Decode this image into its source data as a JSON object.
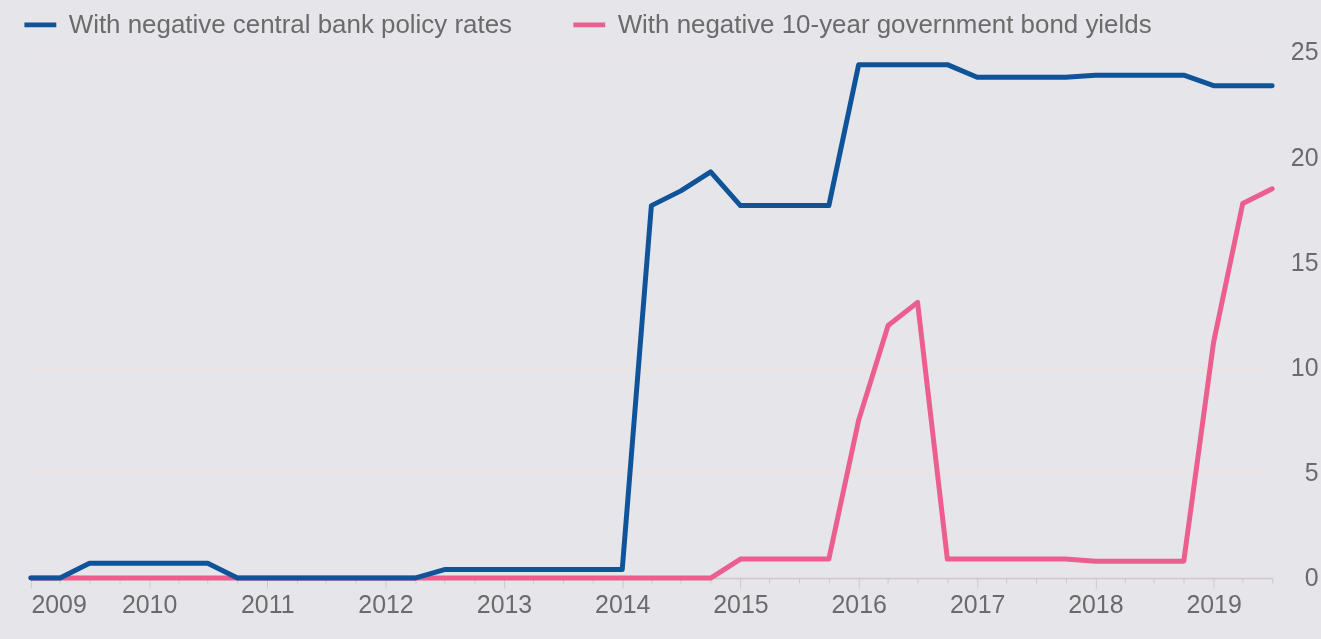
{
  "chart_data": {
    "type": "line",
    "x": [
      "2009-01",
      "2009-04",
      "2009-07",
      "2009-10",
      "2010-01",
      "2010-04",
      "2010-07",
      "2010-10",
      "2011-01",
      "2011-04",
      "2011-07",
      "2011-10",
      "2012-01",
      "2012-04",
      "2012-07",
      "2012-10",
      "2013-01",
      "2013-04",
      "2013-07",
      "2013-10",
      "2014-01",
      "2014-04",
      "2014-07",
      "2014-10",
      "2015-01",
      "2015-04",
      "2015-07",
      "2015-10",
      "2016-01",
      "2016-04",
      "2016-07",
      "2016-10",
      "2017-01",
      "2017-04",
      "2017-07",
      "2017-10",
      "2018-01",
      "2018-04",
      "2018-07",
      "2018-10",
      "2019-01",
      "2019-04",
      "2019-07"
    ],
    "series": [
      {
        "name": "With negative central bank policy rates",
        "color": "#0f5499",
        "axis": "y2",
        "values": [
          0,
          0,
          0.7,
          0.7,
          0.7,
          0.7,
          0.7,
          0,
          0,
          0,
          0,
          0,
          0,
          0,
          0.4,
          0.4,
          0.4,
          0.4,
          0.4,
          0.4,
          0.4,
          17.7,
          18.4,
          19.3,
          17.7,
          17.7,
          17.7,
          17.7,
          24.4,
          24.4,
          24.4,
          24.4,
          23.8,
          23.8,
          23.8,
          23.8,
          23.9,
          23.9,
          23.9,
          23.9,
          23.4,
          23.4,
          23.4
        ]
      },
      {
        "name": "With negative 10-year government bond yields",
        "color": "#eb5e8d",
        "axis": "y2",
        "values": [
          0,
          0,
          0,
          0,
          0,
          0,
          0,
          0,
          0,
          0,
          0,
          0,
          0,
          0,
          0,
          0,
          0,
          0,
          0,
          0,
          0,
          0,
          0,
          0,
          0.9,
          0.9,
          0.9,
          0.9,
          7.5,
          12.0,
          13.1,
          0.9,
          0.9,
          0.9,
          0.9,
          0.9,
          0.8,
          0.8,
          0.8,
          0.8,
          11.2,
          17.8,
          18.5
        ]
      }
    ],
    "xlim": [
      "2009-01",
      "2019-07"
    ],
    "xticks": [
      "2009",
      {
        "value": "2009-04",
        "label": null
      },
      {
        "value": "2009-07",
        "label": null
      },
      {
        "value": "2009-10",
        "label": null
      },
      "2010",
      {
        "value": "2010-04",
        "label": null
      },
      {
        "value": "2010-07",
        "label": null
      },
      {
        "value": "2010-10",
        "label": null
      },
      "2011",
      {
        "value": "2011-04",
        "label": null
      },
      {
        "value": "2011-07",
        "label": null
      },
      {
        "value": "2011-10",
        "label": null
      },
      "2012",
      {
        "value": "2012-04",
        "label": null
      },
      {
        "value": "2012-07",
        "label": null
      },
      {
        "value": "2012-10",
        "label": null
      },
      "2013",
      {
        "value": "2013-04",
        "label": null
      },
      {
        "value": "2013-07",
        "label": null
      },
      {
        "value": "2013-10",
        "label": null
      },
      "2014",
      {
        "value": "2014-04",
        "label": null
      },
      {
        "value": "2014-07",
        "label": null
      },
      {
        "value": "2014-10",
        "label": null
      },
      "2015",
      {
        "value": "2015-04",
        "label": null
      },
      {
        "value": "2015-07",
        "label": null
      },
      {
        "value": "2015-10",
        "label": null
      },
      "2016",
      {
        "value": "2016-04",
        "label": null
      },
      {
        "value": "2016-07",
        "label": null
      },
      {
        "value": "2016-10",
        "label": null
      },
      "2017",
      {
        "value": "2017-04",
        "label": null
      },
      {
        "value": "2017-07",
        "label": null
      },
      {
        "value": "2017-10",
        "label": null
      },
      "2018",
      {
        "value": "2018-04",
        "label": null
      },
      {
        "value": "2018-07",
        "label": null
      },
      {
        "value": "2018-10",
        "label": null
      },
      "2019",
      {
        "value": "2019-04",
        "label": null
      },
      {
        "value": "2019-07",
        "label": null
      }
    ],
    "y2lim": [
      0,
      25
    ],
    "y2ticks": [
      0,
      5,
      10,
      15,
      20,
      25
    ],
    "grid": "y",
    "legend": "top left",
    "line_style": "solid"
  }
}
